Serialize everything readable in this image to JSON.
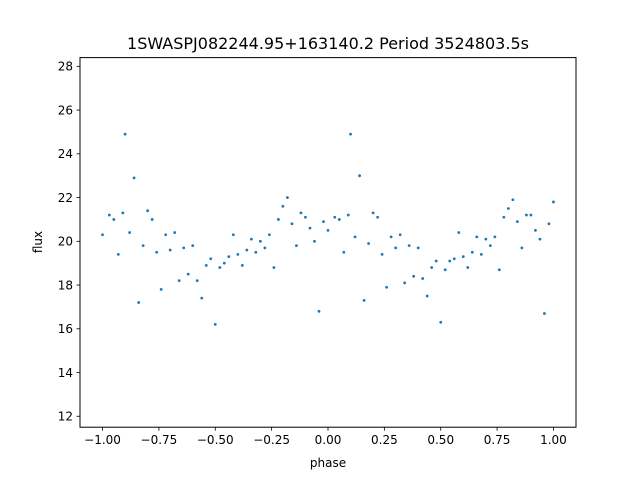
{
  "chart_data": {
    "type": "scatter",
    "title": "1SWASPJ082244.95+163140.2 Period 3524803.5s",
    "xlabel": "phase",
    "ylabel": "flux",
    "xlim": [
      -1.1,
      1.1
    ],
    "ylim": [
      11.5,
      28.4
    ],
    "xticks": [
      -1.0,
      -0.75,
      -0.5,
      -0.25,
      0.0,
      0.25,
      0.5,
      0.75,
      1.0
    ],
    "xtick_labels": [
      "−1.00",
      "−0.75",
      "−0.50",
      "−0.25",
      "0.00",
      "0.25",
      "0.50",
      "0.75",
      "1.00"
    ],
    "yticks": [
      12,
      14,
      16,
      18,
      20,
      22,
      24,
      26,
      28
    ],
    "ytick_labels": [
      "12",
      "14",
      "16",
      "18",
      "20",
      "22",
      "24",
      "26",
      "28"
    ],
    "grid": false,
    "marker_color": "#1f77b4",
    "phase_folded": true,
    "series": [
      {
        "x": [
          -1.0,
          -0.97,
          -0.95,
          -0.93,
          -0.91,
          -0.9,
          -0.88,
          -0.86,
          -0.84,
          -0.82,
          -0.8,
          -0.78,
          -0.76,
          -0.74,
          -0.72,
          -0.7,
          -0.68,
          -0.66,
          -0.64,
          -0.62,
          -0.6,
          -0.58,
          -0.56,
          -0.54,
          -0.52,
          -0.5,
          -0.48,
          -0.46,
          -0.44,
          -0.42,
          -0.4,
          -0.38,
          -0.36,
          -0.34,
          -0.32,
          -0.3,
          -0.28,
          -0.26,
          -0.24,
          -0.22,
          -0.2,
          -0.18,
          -0.16,
          -0.14,
          -0.12,
          -0.1,
          -0.08,
          -0.06,
          -0.04,
          -0.02,
          0.0,
          0.03,
          0.05,
          0.07,
          0.09,
          0.1,
          0.12,
          0.14,
          0.16,
          0.18,
          0.2,
          0.22,
          0.24,
          0.26,
          0.28,
          0.3,
          0.32,
          0.34,
          0.36,
          0.38,
          0.4,
          0.42,
          0.44,
          0.46,
          0.48,
          0.5,
          0.52,
          0.54,
          0.56,
          0.58,
          0.6,
          0.62,
          0.64,
          0.66,
          0.68,
          0.7,
          0.72,
          0.74,
          0.76,
          0.78,
          0.8,
          0.82,
          0.84,
          0.86,
          0.88,
          0.9,
          0.92,
          0.94,
          0.96,
          0.98,
          1.0
        ],
        "y": [
          20.3,
          21.2,
          21.0,
          19.4,
          21.3,
          24.9,
          20.4,
          22.9,
          17.2,
          19.8,
          21.4,
          21.0,
          19.5,
          17.8,
          20.3,
          19.6,
          20.4,
          18.2,
          19.7,
          18.5,
          19.8,
          18.2,
          17.4,
          18.9,
          19.2,
          16.2,
          18.8,
          19.0,
          19.3,
          20.3,
          19.4,
          18.9,
          19.6,
          20.1,
          19.5,
          20.0,
          19.7,
          20.3,
          18.8,
          21.0,
          21.6,
          22.0,
          20.8,
          19.8,
          21.3,
          21.1,
          20.6,
          20.0,
          16.8,
          20.9,
          20.5,
          21.1,
          21.0,
          19.5,
          21.2,
          24.9,
          20.2,
          23.0,
          17.3,
          19.9,
          21.3,
          21.1,
          19.4,
          17.9,
          20.2,
          19.7,
          20.3,
          18.1,
          19.8,
          18.4,
          19.7,
          18.3,
          17.5,
          18.8,
          19.1,
          16.3,
          18.7,
          19.1,
          19.2,
          20.4,
          19.3,
          18.8,
          19.5,
          20.2,
          19.4,
          20.1,
          19.8,
          20.2,
          18.7,
          21.1,
          21.5,
          21.9,
          20.9,
          19.7,
          21.2,
          21.2,
          20.5,
          20.1,
          16.7,
          20.8,
          21.8
        ]
      }
    ]
  }
}
